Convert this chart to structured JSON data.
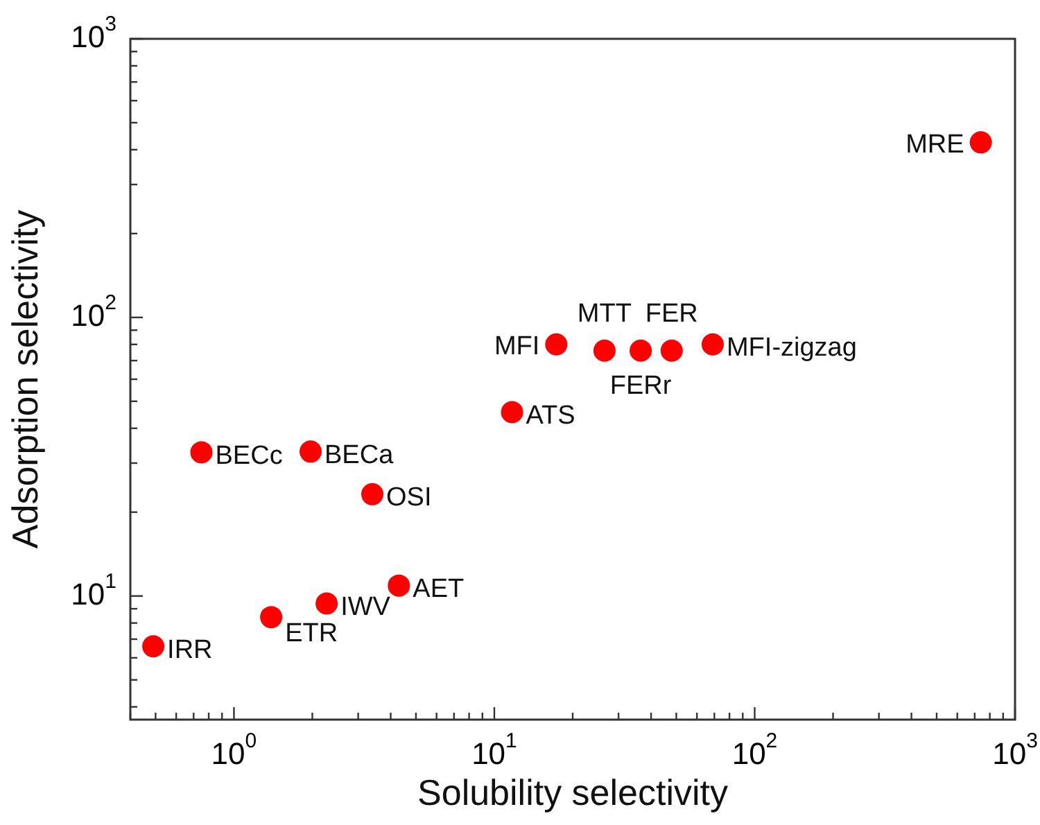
{
  "chart_data": {
    "type": "scatter",
    "xlabel": "Solubility selectivity",
    "ylabel": "Adsorption selectivity",
    "log": "xy",
    "marker": "circle",
    "color": "#ff0000",
    "x": [
      0.49,
      1.39,
      2.27,
      4.3,
      0.75,
      1.97,
      3.4,
      11.7,
      17.3,
      26.5,
      36.5,
      48,
      69,
      739
    ],
    "values": [
      6.6,
      8.4,
      9.4,
      10.9,
      32.8,
      33,
      23.2,
      45.7,
      80,
      76,
      76,
      76,
      80,
      425
    ],
    "xlim": [
      0.4,
      1000
    ],
    "ylim": [
      3.6,
      1000
    ],
    "xticks": [
      {
        "value": 0.4,
        "label": null
      },
      {
        "value": 0.5,
        "label": null
      },
      {
        "value": 0.6,
        "label": null
      },
      {
        "value": 0.7,
        "label": null
      },
      {
        "value": 0.8,
        "label": null
      },
      {
        "value": 0.9,
        "label": null
      },
      {
        "value": 1,
        "label": "10$^{0}$"
      },
      {
        "value": 2,
        "label": null
      },
      {
        "value": 3,
        "label": null
      },
      {
        "value": 4,
        "label": null
      },
      {
        "value": 5,
        "label": null
      },
      {
        "value": 6,
        "label": null
      },
      {
        "value": 7,
        "label": null
      },
      {
        "value": 8,
        "label": null
      },
      {
        "value": 9,
        "label": null
      },
      {
        "value": 10,
        "label": "10$^{1}$"
      },
      {
        "value": 20,
        "label": null
      },
      {
        "value": 30,
        "label": null
      },
      {
        "value": 40,
        "label": null
      },
      {
        "value": 50,
        "label": null
      },
      {
        "value": 60,
        "label": null
      },
      {
        "value": 70,
        "label": null
      },
      {
        "value": 80,
        "label": null
      },
      {
        "value": 90,
        "label": null
      },
      {
        "value": 100,
        "label": "10$^{2}$"
      },
      {
        "value": 200,
        "label": null
      },
      {
        "value": 300,
        "label": null
      },
      {
        "value": 400,
        "label": null
      },
      {
        "value": 500,
        "label": null
      },
      {
        "value": 600,
        "label": null
      },
      {
        "value": 700,
        "label": null
      },
      {
        "value": 800,
        "label": null
      },
      {
        "value": 900,
        "label": null
      },
      {
        "value": 1000,
        "label": "10$^{3}$"
      }
    ],
    "yticks": [
      {
        "value": 4,
        "label": null
      },
      {
        "value": 5,
        "label": null
      },
      {
        "value": 6,
        "label": null
      },
      {
        "value": 7,
        "label": null
      },
      {
        "value": 8,
        "label": null
      },
      {
        "value": 9,
        "label": null
      },
      {
        "value": 10,
        "label": "10$^{1}$"
      },
      {
        "value": 20,
        "label": null
      },
      {
        "value": 30,
        "label": null
      },
      {
        "value": 40,
        "label": null
      },
      {
        "value": 50,
        "label": null
      },
      {
        "value": 60,
        "label": null
      },
      {
        "value": 70,
        "label": null
      },
      {
        "value": 80,
        "label": null
      },
      {
        "value": 90,
        "label": null
      },
      {
        "value": 100,
        "label": "10$^{2}$"
      },
      {
        "value": 200,
        "label": null
      },
      {
        "value": 300,
        "label": null
      },
      {
        "value": 400,
        "label": null
      },
      {
        "value": 500,
        "label": null
      },
      {
        "value": 600,
        "label": null
      },
      {
        "value": 700,
        "label": null
      },
      {
        "value": 800,
        "label": null
      },
      {
        "value": 900,
        "label": null
      },
      {
        "value": 1000,
        "label": "10$^{3}$"
      }
    ],
    "annotations": [
      {
        "text": "IRR",
        "x": 0.49,
        "y": 6.6
      },
      {
        "text": "ETR",
        "x": 1.39,
        "y": 8.4
      },
      {
        "text": "IWV",
        "x": 2.27,
        "y": 9.4
      },
      {
        "text": "AET",
        "x": 4.3,
        "y": 10.9
      },
      {
        "text": "BECc",
        "x": 0.75,
        "y": 32.8
      },
      {
        "text": "BECa",
        "x": 1.97,
        "y": 33
      },
      {
        "text": "OSI",
        "x": 3.4,
        "y": 23.2
      },
      {
        "text": "ATS",
        "x": 11.7,
        "y": 45.7
      },
      {
        "text": "MFI",
        "x": 17.3,
        "y": 80
      },
      {
        "text": "MTT",
        "x": 26.5,
        "y": 76
      },
      {
        "text": "FERr",
        "x": 36.5,
        "y": 76
      },
      {
        "text": "FER",
        "x": 48,
        "y": 76
      },
      {
        "text": "MFI-zigzag",
        "x": 69,
        "y": 80
      },
      {
        "text": "MRE",
        "x": 739,
        "y": 425
      }
    ]
  }
}
